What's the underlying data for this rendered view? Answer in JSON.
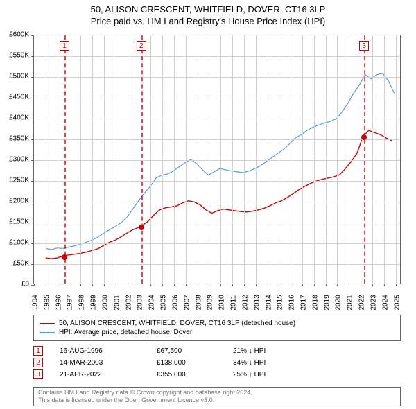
{
  "title": {
    "line1": "50, ALISON CRESCENT, WHITFIELD, DOVER, CT16 3LP",
    "line2": "Price paid vs. HM Land Registry's House Price Index (HPI)"
  },
  "chart": {
    "type": "line",
    "background_color": "#ffffff",
    "grid_color": "#d0d0d0",
    "border_color": "#666666",
    "x_domain": [
      1994,
      2025.5
    ],
    "y_domain": [
      0,
      600000
    ],
    "y_ticks": [
      0,
      50000,
      100000,
      150000,
      200000,
      250000,
      300000,
      350000,
      400000,
      450000,
      500000,
      550000,
      600000
    ],
    "y_tick_labels": [
      "£0",
      "£50K",
      "£100K",
      "£150K",
      "£200K",
      "£250K",
      "£300K",
      "£350K",
      "£400K",
      "£450K",
      "£500K",
      "£550K",
      "£600K"
    ],
    "x_ticks": [
      1994,
      1995,
      1996,
      1997,
      1998,
      1999,
      2000,
      2001,
      2002,
      2003,
      2004,
      2005,
      2006,
      2007,
      2008,
      2009,
      2010,
      2011,
      2012,
      2013,
      2014,
      2015,
      2016,
      2017,
      2018,
      2019,
      2020,
      2021,
      2022,
      2023,
      2024,
      2025
    ],
    "series": [
      {
        "name": "price_paid",
        "label": "50, ALISON CRESCENT, WHITFIELD, DOVER, CT16 3LP (detached house)",
        "color": "#cc0000",
        "line_width": 1.4,
        "points": [
          [
            1995.0,
            62000
          ],
          [
            1995.5,
            60000
          ],
          [
            1996.0,
            62000
          ],
          [
            1996.62,
            67500
          ],
          [
            1997.5,
            71000
          ],
          [
            1998.0,
            73000
          ],
          [
            1998.5,
            76000
          ],
          [
            1999.0,
            80000
          ],
          [
            1999.5,
            84000
          ],
          [
            2000.0,
            92000
          ],
          [
            2000.5,
            100000
          ],
          [
            2001.0,
            105000
          ],
          [
            2001.5,
            113000
          ],
          [
            2002.0,
            122000
          ],
          [
            2002.5,
            130000
          ],
          [
            2003.2,
            138000
          ],
          [
            2003.8,
            150000
          ],
          [
            2004.3,
            165000
          ],
          [
            2004.8,
            178000
          ],
          [
            2005.3,
            183000
          ],
          [
            2005.8,
            185000
          ],
          [
            2006.3,
            188000
          ],
          [
            2006.8,
            195000
          ],
          [
            2007.3,
            200000
          ],
          [
            2007.8,
            197000
          ],
          [
            2008.3,
            190000
          ],
          [
            2008.8,
            178000
          ],
          [
            2009.3,
            170000
          ],
          [
            2009.8,
            176000
          ],
          [
            2010.3,
            180000
          ],
          [
            2010.8,
            178000
          ],
          [
            2011.3,
            176000
          ],
          [
            2011.8,
            174000
          ],
          [
            2012.3,
            173000
          ],
          [
            2012.8,
            175000
          ],
          [
            2013.3,
            178000
          ],
          [
            2013.8,
            182000
          ],
          [
            2014.3,
            188000
          ],
          [
            2014.8,
            195000
          ],
          [
            2015.3,
            200000
          ],
          [
            2015.8,
            208000
          ],
          [
            2016.3,
            217000
          ],
          [
            2016.8,
            227000
          ],
          [
            2017.3,
            235000
          ],
          [
            2017.8,
            242000
          ],
          [
            2018.3,
            248000
          ],
          [
            2018.8,
            252000
          ],
          [
            2019.3,
            255000
          ],
          [
            2019.8,
            258000
          ],
          [
            2020.3,
            263000
          ],
          [
            2020.8,
            278000
          ],
          [
            2021.3,
            295000
          ],
          [
            2021.8,
            315000
          ],
          [
            2022.3,
            355000
          ],
          [
            2022.8,
            370000
          ],
          [
            2023.3,
            365000
          ],
          [
            2023.8,
            360000
          ],
          [
            2024.3,
            352000
          ],
          [
            2024.8,
            345000
          ]
        ]
      },
      {
        "name": "hpi",
        "label": "HPI: Average price, detached house, Dover",
        "color": "#5b9bd5",
        "line_width": 1.2,
        "points": [
          [
            1995.0,
            85000
          ],
          [
            1995.5,
            82000
          ],
          [
            1996.0,
            86000
          ],
          [
            1996.5,
            85000
          ],
          [
            1997.0,
            88000
          ],
          [
            1997.5,
            91000
          ],
          [
            1998.0,
            95000
          ],
          [
            1998.5,
            100000
          ],
          [
            1999.0,
            105000
          ],
          [
            1999.5,
            112000
          ],
          [
            2000.0,
            122000
          ],
          [
            2000.5,
            130000
          ],
          [
            2001.0,
            138000
          ],
          [
            2001.5,
            147000
          ],
          [
            2002.0,
            160000
          ],
          [
            2002.5,
            180000
          ],
          [
            2003.0,
            200000
          ],
          [
            2003.5,
            218000
          ],
          [
            2004.0,
            235000
          ],
          [
            2004.5,
            255000
          ],
          [
            2005.0,
            262000
          ],
          [
            2005.5,
            265000
          ],
          [
            2006.0,
            272000
          ],
          [
            2006.5,
            282000
          ],
          [
            2007.0,
            292000
          ],
          [
            2007.5,
            300000
          ],
          [
            2008.0,
            290000
          ],
          [
            2008.5,
            275000
          ],
          [
            2009.0,
            262000
          ],
          [
            2009.5,
            270000
          ],
          [
            2010.0,
            278000
          ],
          [
            2010.5,
            275000
          ],
          [
            2011.0,
            272000
          ],
          [
            2011.5,
            270000
          ],
          [
            2012.0,
            268000
          ],
          [
            2012.5,
            272000
          ],
          [
            2013.0,
            278000
          ],
          [
            2013.5,
            285000
          ],
          [
            2014.0,
            295000
          ],
          [
            2014.5,
            305000
          ],
          [
            2015.0,
            315000
          ],
          [
            2015.5,
            325000
          ],
          [
            2016.0,
            338000
          ],
          [
            2016.5,
            352000
          ],
          [
            2017.0,
            360000
          ],
          [
            2017.5,
            370000
          ],
          [
            2018.0,
            378000
          ],
          [
            2018.5,
            383000
          ],
          [
            2019.0,
            388000
          ],
          [
            2019.5,
            392000
          ],
          [
            2020.0,
            398000
          ],
          [
            2020.5,
            415000
          ],
          [
            2021.0,
            435000
          ],
          [
            2021.5,
            460000
          ],
          [
            2022.0,
            480000
          ],
          [
            2022.5,
            505000
          ],
          [
            2023.0,
            495000
          ],
          [
            2023.5,
            505000
          ],
          [
            2024.0,
            508000
          ],
          [
            2024.5,
            490000
          ],
          [
            2025.0,
            460000
          ]
        ]
      }
    ],
    "events": [
      {
        "num": "1",
        "year_frac": 1996.62,
        "price": 67500,
        "date": "16-AUG-1996",
        "price_label": "£67,500",
        "diff": "21% ↓ HPI"
      },
      {
        "num": "2",
        "year_frac": 2003.2,
        "price": 138000,
        "date": "14-MAR-2003",
        "price_label": "£138,000",
        "diff": "34% ↓ HPI"
      },
      {
        "num": "3",
        "year_frac": 2022.3,
        "price": 355000,
        "date": "21-APR-2022",
        "price_label": "£355,000",
        "diff": "25% ↓ HPI"
      }
    ],
    "event_line_color": "#cc0000",
    "marker_color": "#cc0000",
    "marker_radius": 4
  },
  "footer": {
    "line1": "Contains HM Land Registry data © Crown copyright and database right 2024.",
    "line2": "This data is licensed under the Open Government Licence v3.0."
  }
}
